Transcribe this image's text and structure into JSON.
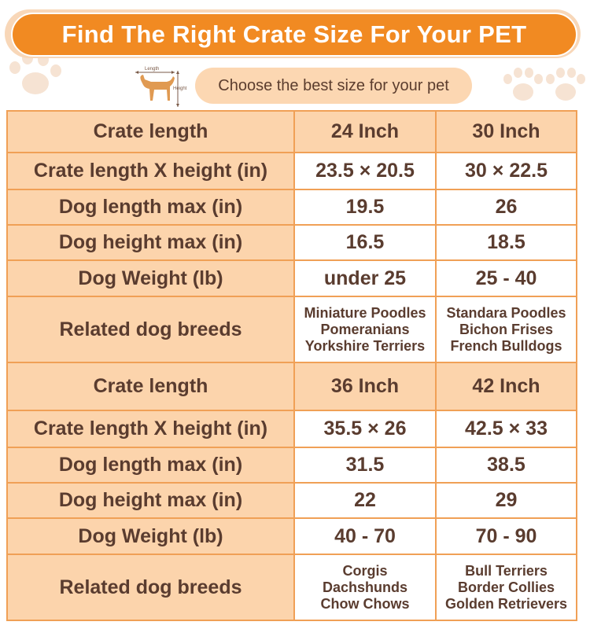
{
  "header": {
    "title": "Find The Right Crate Size For Your PET",
    "subtitle": "Choose the best size for your pet",
    "icon_labels": {
      "length": "Length",
      "height": "Height"
    }
  },
  "colors": {
    "accent": "#f18a22",
    "label_bg": "#fcd4ac",
    "border": "#f0a056",
    "text": "#5a3c2f",
    "paw": "#f6e3d3"
  },
  "icons": [
    "dog-size-icon",
    "paw-print-icon"
  ],
  "tables": [
    {
      "rows": {
        "crate_length_label": "Crate length",
        "crate_lxh_label": "Crate length X height (in)",
        "dog_length_label": "Dog length max (in)",
        "dog_height_label": "Dog height max (in)",
        "dog_weight_label": "Dog Weight (lb)",
        "breeds_label": "Related dog breeds"
      },
      "columns": [
        {
          "size": "24 Inch",
          "crate_lxh": "23.5 × 20.5",
          "dog_length": "19.5",
          "dog_height": "16.5",
          "dog_weight": "under 25",
          "breeds": [
            "Miniature Poodles",
            "Pomeranians",
            "Yorkshire Terriers"
          ]
        },
        {
          "size": "30 Inch",
          "crate_lxh": "30 × 22.5",
          "dog_length": "26",
          "dog_height": "18.5",
          "dog_weight": "25 - 40",
          "breeds": [
            "Standara Poodles",
            "Bichon Frises",
            "French Bulldogs"
          ]
        }
      ]
    },
    {
      "rows": {
        "crate_length_label": "Crate length",
        "crate_lxh_label": "Crate length X height (in)",
        "dog_length_label": "Dog length max (in)",
        "dog_height_label": "Dog height max (in)",
        "dog_weight_label": "Dog Weight (lb)",
        "breeds_label": "Related dog breeds"
      },
      "columns": [
        {
          "size": "36 Inch",
          "crate_lxh": "35.5 × 26",
          "dog_length": "31.5",
          "dog_height": "22",
          "dog_weight": "40 - 70",
          "breeds": [
            "Corgis",
            "Dachshunds",
            "Chow Chows"
          ]
        },
        {
          "size": "42 Inch",
          "crate_lxh": "42.5 × 33",
          "dog_length": "38.5",
          "dog_height": "29",
          "dog_weight": "70 - 90",
          "breeds": [
            "Bull Terriers",
            "Border Collies",
            "Golden Retrievers"
          ]
        }
      ]
    }
  ]
}
